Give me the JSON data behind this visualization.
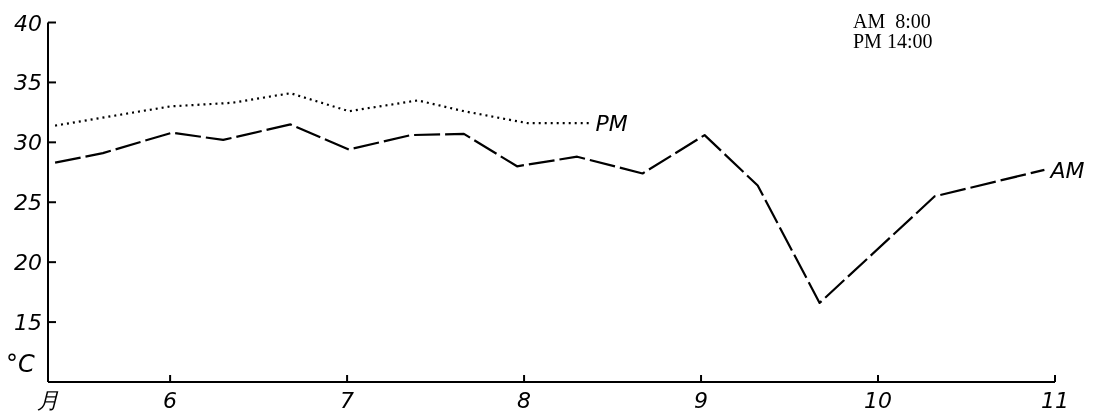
{
  "chart_data": {
    "type": "line",
    "ylabel": "°C",
    "x": [
      5.35,
      5.62,
      6.01,
      6.3,
      6.68,
      7.01,
      7.36,
      7.66,
      7.96,
      8.3,
      8.67,
      9.02,
      9.32,
      9.67,
      10.32,
      10.94
    ],
    "series": [
      {
        "name": "PM",
        "color": "#000000",
        "line_style": "dotted",
        "x": [
          5.35,
          6.0,
          6.35,
          6.68,
          7.01,
          7.4,
          7.66,
          8.02,
          8.37
        ],
        "values": [
          31.4,
          33.0,
          33.3,
          34.1,
          32.6,
          33.5,
          32.6,
          31.6,
          31.6
        ]
      },
      {
        "name": "AM",
        "color": "#000000",
        "line_style": "dashed",
        "values": [
          28.3,
          29.1,
          30.8,
          30.2,
          31.5,
          29.4,
          30.6,
          30.7,
          28.0,
          28.8,
          27.4,
          30.6,
          26.4,
          16.6,
          25.5,
          27.7
        ]
      }
    ],
    "xlim": [
      5.31,
      11
    ],
    "xticks": [
      {
        "value": 5.31,
        "label": "月"
      },
      6,
      7,
      8,
      9,
      10,
      11
    ],
    "ylim": [
      10,
      40
    ],
    "yticks": [
      15,
      20,
      25,
      30,
      35,
      40
    ],
    "grid": false,
    "marker": "none",
    "annotations": [
      "AM  8:00",
      "PM 14:00"
    ]
  }
}
